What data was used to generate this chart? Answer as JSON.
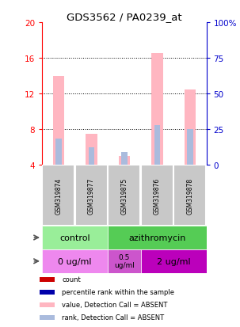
{
  "title": "GDS3562 / PA0239_at",
  "samples": [
    "GSM319874",
    "GSM319877",
    "GSM319875",
    "GSM319876",
    "GSM319878"
  ],
  "pink_bar_tops": [
    14.0,
    7.5,
    5.0,
    16.5,
    12.5
  ],
  "blue_bar_tops": [
    7.0,
    6.0,
    5.5,
    8.5,
    8.0
  ],
  "bar_base": 4.0,
  "ylim_left": [
    4,
    20
  ],
  "ylim_right": [
    0,
    100
  ],
  "yticks_left": [
    4,
    8,
    12,
    16,
    20
  ],
  "yticks_right": [
    0,
    25,
    50,
    75,
    100
  ],
  "ytick_labels_right": [
    "0",
    "25",
    "50",
    "75",
    "100%"
  ],
  "left_axis_color": "#FF0000",
  "right_axis_color": "#0000CC",
  "control_color": "#99EE99",
  "azith_color": "#55CC55",
  "dose0_color": "#EE88EE",
  "dose05_color": "#CC55CC",
  "dose2_color": "#BB00BB",
  "sample_bg_color": "#C8C8C8",
  "sample_border_color": "#FFFFFF",
  "pink_color": "#FFB6C1",
  "blue_color": "#AABBDD",
  "legend_items": [
    {
      "color": "#CC0000",
      "label": "count"
    },
    {
      "color": "#0000AA",
      "label": "percentile rank within the sample"
    },
    {
      "color": "#FFB6C1",
      "label": "value, Detection Call = ABSENT"
    },
    {
      "color": "#AABBDD",
      "label": "rank, Detection Call = ABSENT"
    }
  ],
  "bar_width": 0.35,
  "blue_bar_width": 0.18
}
